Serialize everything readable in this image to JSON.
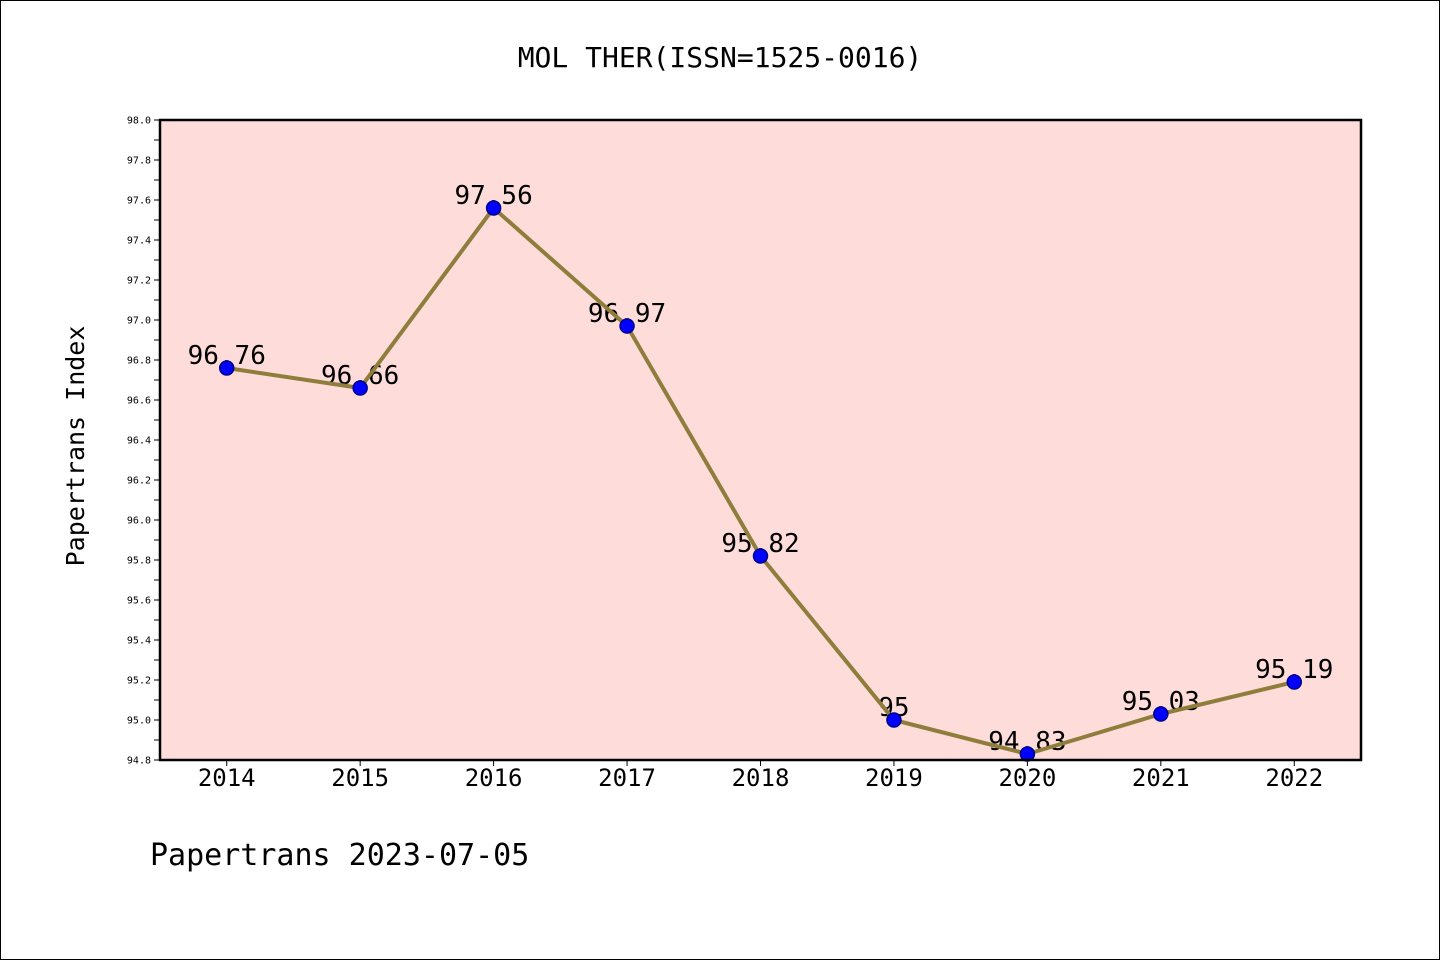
{
  "footer": "Papertrans 2023-07-05",
  "colors": {
    "plot_background": "#fddcda",
    "line": "#8f7d3c",
    "marker": "#0000ff",
    "marker_edge": "#00008b",
    "axes": "#000000"
  },
  "chart_data": {
    "type": "line",
    "title": "MOL THER(ISSN=1525-0016)",
    "ylabel": "Papertrans Index",
    "categories": [
      "2014",
      "2015",
      "2016",
      "2017",
      "2018",
      "2019",
      "2020",
      "2021",
      "2022"
    ],
    "series": [
      {
        "values": [
          96.76,
          96.66,
          97.56,
          96.97,
          95.82,
          95,
          94.83,
          95.03,
          95.19
        ],
        "marker": "circle"
      }
    ],
    "ylim": [
      94.8,
      98.0
    ],
    "yticks": [
      "94.8",
      "95.0",
      "95.2",
      "95.4",
      "95.6",
      "95.8",
      "96.0",
      "96.2",
      "96.4",
      "96.6",
      "96.8",
      "97.0",
      "97.2",
      "97.4",
      "97.6",
      "97.8",
      "98.0"
    ],
    "data_labels": true,
    "grid": false,
    "legend": "none"
  }
}
